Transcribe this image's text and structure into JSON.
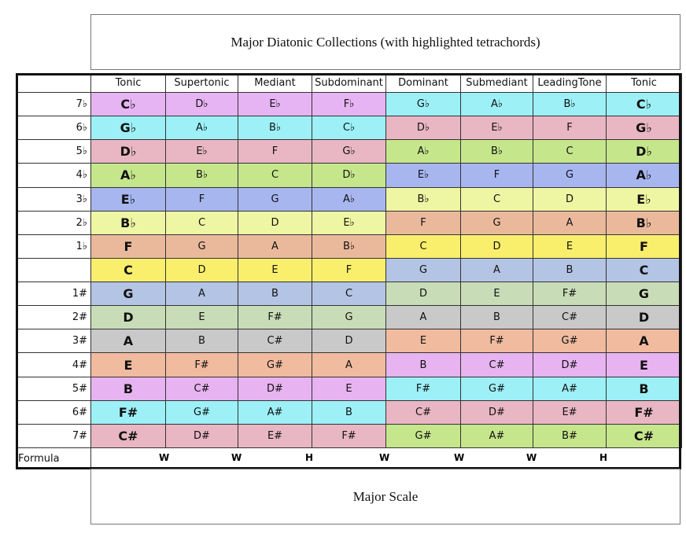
{
  "title": "Major Diatonic Collections (with highlighted tetrachords)",
  "table": {
    "header": [
      "Tonic",
      "Supertonic",
      "Mediant",
      "Subdominant",
      "Dominant",
      "Submediant",
      "LeadingTone",
      "Tonic"
    ],
    "rows": [
      {
        "label": "7♭",
        "notes": [
          "C♭",
          "D♭",
          "E♭",
          "F♭",
          "G♭",
          "A♭",
          "B♭",
          "C♭"
        ],
        "colors": [
          "#e6b4f2",
          "#9cf0f6"
        ]
      },
      {
        "label": "6♭",
        "notes": [
          "G♭",
          "A♭",
          "B♭",
          "C♭",
          "D♭",
          "E♭",
          "F",
          "G♭"
        ],
        "colors": [
          "#9cf0f6",
          "#e9b6c4"
        ]
      },
      {
        "label": "5♭",
        "notes": [
          "D♭",
          "E♭",
          "F",
          "G♭",
          "A♭",
          "B♭",
          "C",
          "D♭"
        ],
        "colors": [
          "#e9b6c4",
          "#c6e68c"
        ]
      },
      {
        "label": "4♭",
        "notes": [
          "A♭",
          "B♭",
          "C",
          "D♭",
          "E♭",
          "F",
          "G",
          "A♭"
        ],
        "colors": [
          "#c6e68c",
          "#a7b6ef"
        ]
      },
      {
        "label": "3♭",
        "notes": [
          "E♭",
          "F",
          "G",
          "A♭",
          "B♭",
          "C",
          "D",
          "E♭"
        ],
        "colors": [
          "#a7b6ef",
          "#eff6a3"
        ]
      },
      {
        "label": "2♭",
        "notes": [
          "B♭",
          "C",
          "D",
          "E♭",
          "F",
          "G",
          "A",
          "B♭"
        ],
        "colors": [
          "#eff6a3",
          "#eab99c"
        ]
      },
      {
        "label": "1♭",
        "notes": [
          "F",
          "G",
          "A",
          "B♭",
          "C",
          "D",
          "E",
          "F"
        ],
        "colors": [
          "#eab99c",
          "#f9ef6c"
        ]
      },
      {
        "label": null,
        "notes": [
          "C",
          "D",
          "E",
          "F",
          "G",
          "A",
          "B",
          "C"
        ],
        "colors": [
          "#f9ef6c",
          "#b4c4e4"
        ]
      },
      {
        "label": "1#",
        "notes": [
          "G",
          "A",
          "B",
          "C",
          "D",
          "E",
          "F#",
          "G"
        ],
        "colors": [
          "#b4c4e4",
          "#c8ddb7"
        ]
      },
      {
        "label": "2#",
        "notes": [
          "D",
          "E",
          "F#",
          "G",
          "A",
          "B",
          "C#",
          "D"
        ],
        "colors": [
          "#c8ddb7",
          "#c9c9c9"
        ]
      },
      {
        "label": "3#",
        "notes": [
          "A",
          "B",
          "C#",
          "D",
          "E",
          "F#",
          "G#",
          "A"
        ],
        "colors": [
          "#c9c9c9",
          "#f0bb9f"
        ]
      },
      {
        "label": "4#",
        "notes": [
          "E",
          "F#",
          "G#",
          "A",
          "B",
          "C#",
          "D#",
          "E"
        ],
        "colors": [
          "#f0bb9f",
          "#e7b3f0"
        ]
      },
      {
        "label": "5#",
        "notes": [
          "B",
          "C#",
          "D#",
          "E",
          "F#",
          "G#",
          "A#",
          "B"
        ],
        "colors": [
          "#e7b3f0",
          "#9cf0f6"
        ]
      },
      {
        "label": "6#",
        "notes": [
          "F#",
          "G#",
          "A#",
          "B",
          "C#",
          "D#",
          "E#",
          "F#"
        ],
        "colors": [
          "#9cf0f6",
          "#e9b6c4"
        ]
      },
      {
        "label": "7#",
        "notes": [
          "C#",
          "D#",
          "E#",
          "F#",
          "G#",
          "A#",
          "B#",
          "C#"
        ],
        "colors": [
          "#e9b6c4",
          "#c6e68c"
        ]
      }
    ],
    "formula_label": "Formula",
    "formula": [
      "W",
      "W",
      "H",
      "W",
      "W",
      "W",
      "H"
    ]
  },
  "footer": "Major Scale"
}
